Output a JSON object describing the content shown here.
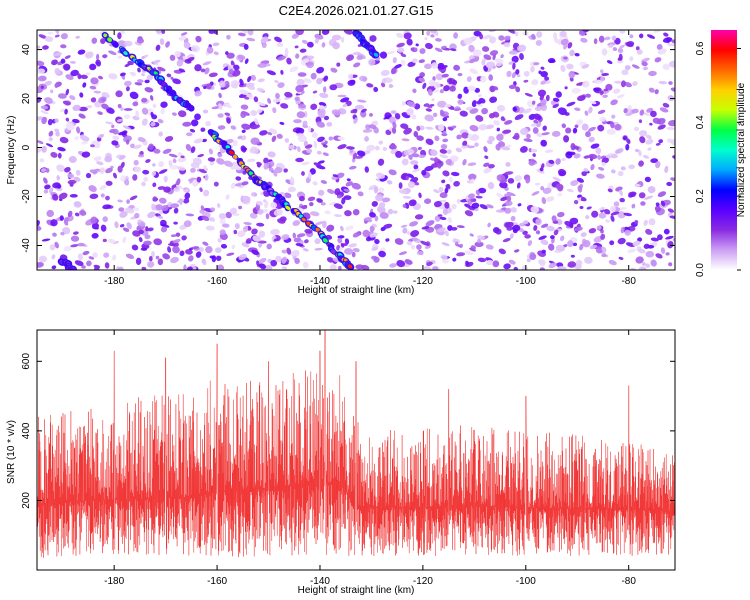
{
  "title": "C2E4.2026.021.01.27.G15",
  "chart_data": [
    {
      "type": "heatmap",
      "xlabel": "Height of straight line (km)",
      "ylabel": "Frequency (Hz)",
      "xlim": [
        -195,
        -71
      ],
      "ylim": [
        -50,
        48
      ],
      "x_ticks": [
        -180,
        -160,
        -140,
        -120,
        -100,
        -80
      ],
      "y_ticks": [
        -40,
        -20,
        0,
        20,
        40
      ],
      "grid": false,
      "colorbar": {
        "label": "Normalized spectral amplitude",
        "range": [
          0,
          0.65
        ],
        "ticks": [
          0.0,
          0.2,
          0.4,
          0.6
        ],
        "colors": [
          "#ffffff",
          "#cda0f5",
          "#8a2be2",
          "#5a00ff",
          "#0000ff",
          "#00aaff",
          "#00ffcc",
          "#00ff44",
          "#c8ff00",
          "#ffd000",
          "#ff6600",
          "#ff0000",
          "#ff00aa"
        ]
      },
      "tracks": [
        {
          "points": [
            [
              -182,
              46
            ],
            [
              -176,
              36
            ],
            [
              -172,
              30
            ],
            [
              -168,
              20
            ],
            [
              -165,
              16
            ]
          ],
          "peak_amplitude": 0.45
        },
        {
          "points": [
            [
              -161,
              6
            ],
            [
              -158,
              0
            ],
            [
              -153,
              -12
            ],
            [
              -150,
              -17
            ],
            [
              -146,
              -24
            ],
            [
              -140,
              -35
            ],
            [
              -136,
              -45
            ],
            [
              -134,
              -49
            ]
          ],
          "peak_amplitude": 0.6
        },
        {
          "points": [
            [
              -133,
              47
            ],
            [
              -131,
              42
            ],
            [
              -129,
              37
            ]
          ],
          "peak_amplitude": 0.3
        },
        {
          "points": [
            [
              -190,
              -46
            ],
            [
              -188,
              -50
            ]
          ],
          "peak_amplitude": 0.15
        }
      ]
    },
    {
      "type": "line",
      "xlabel": "Height of straight line (km)",
      "ylabel": "SNR (10 * v/v)",
      "xlim": [
        -195,
        -71
      ],
      "ylim": [
        0,
        690
      ],
      "x_ticks": [
        -180,
        -160,
        -140,
        -120,
        -100,
        -80
      ],
      "y_ticks": [
        200,
        400,
        600
      ],
      "grid": false,
      "series": [
        {
          "color": "#f03030",
          "envelope": {
            "x": [
              -195,
              -185,
              -175,
              -165,
              -160,
              -155,
              -150,
              -145,
              -140,
              -136,
              -134,
              -133,
              -130,
              -120,
              -110,
              -100,
              -90,
              -80,
              -71
            ],
            "max": [
              440,
              470,
              500,
              510,
              560,
              540,
              560,
              580,
              600,
              590,
              480,
              430,
              400,
              410,
              420,
              400,
              390,
              380,
              370
            ],
            "min": [
              30,
              40,
              45,
              40,
              40,
              35,
              40,
              35,
              35,
              40,
              40,
              40,
              40,
              40,
              40,
              40,
              40,
              40,
              40
            ],
            "mean": [
              190,
              200,
              205,
              210,
              225,
              230,
              235,
              245,
              250,
              255,
              200,
              185,
              180,
              180,
              185,
              180,
              175,
              175,
              170
            ]
          },
          "spikes": [
            [
              -180,
              630
            ],
            [
              -170,
              610
            ],
            [
              -160,
              650
            ],
            [
              -150,
              600
            ],
            [
              -140,
              630
            ],
            [
              -139,
              690
            ],
            [
              -133,
              600
            ],
            [
              -115,
              520
            ],
            [
              -100,
              500
            ],
            [
              -80,
              530
            ]
          ]
        }
      ]
    }
  ]
}
